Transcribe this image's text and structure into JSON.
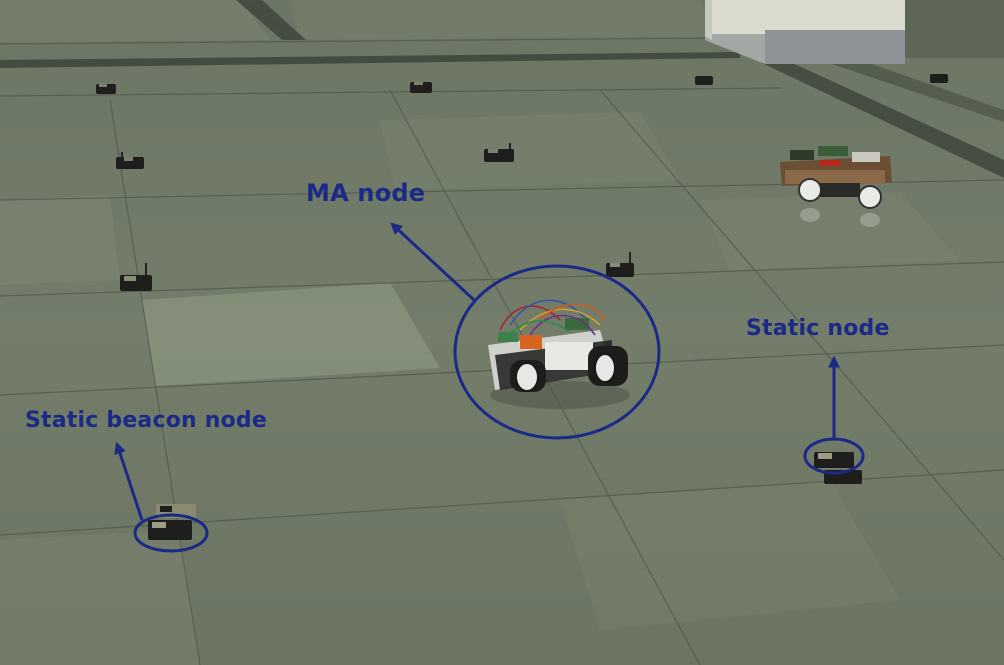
{
  "annotations": {
    "ma_node": "MA node",
    "static_node": "Static node",
    "static_beacon_node": "Static beacon node"
  },
  "colors": {
    "annotation": "#1b2a86",
    "floor": "#6f7a66",
    "floor_light": "#8a9580",
    "grout": "#3f463c"
  }
}
